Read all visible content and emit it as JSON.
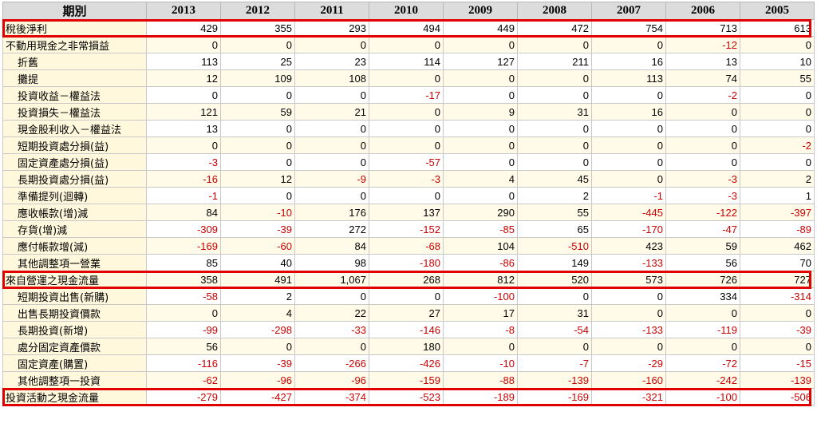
{
  "header": {
    "period_label": "期別",
    "years": [
      "2013",
      "2012",
      "2011",
      "2010",
      "2009",
      "2008",
      "2007",
      "2006",
      "2005"
    ]
  },
  "rows": [
    {
      "label": "稅後淨利",
      "indent": false,
      "highlight": true,
      "values": [
        "429",
        "355",
        "293",
        "494",
        "449",
        "472",
        "754",
        "713",
        "613"
      ]
    },
    {
      "label": "不動用現金之非常損益",
      "indent": false,
      "highlight": false,
      "values": [
        "0",
        "0",
        "0",
        "0",
        "0",
        "0",
        "0",
        "-12",
        "0"
      ]
    },
    {
      "label": "折舊",
      "indent": true,
      "highlight": false,
      "values": [
        "113",
        "25",
        "23",
        "114",
        "127",
        "211",
        "16",
        "13",
        "10"
      ]
    },
    {
      "label": "攤提",
      "indent": true,
      "highlight": false,
      "values": [
        "12",
        "109",
        "108",
        "0",
        "0",
        "0",
        "113",
        "74",
        "55"
      ]
    },
    {
      "label": "投資收益－權益法",
      "indent": true,
      "highlight": false,
      "values": [
        "0",
        "0",
        "0",
        "-17",
        "0",
        "0",
        "0",
        "-2",
        "0"
      ]
    },
    {
      "label": "投資損失－權益法",
      "indent": true,
      "highlight": false,
      "values": [
        "121",
        "59",
        "21",
        "0",
        "9",
        "31",
        "16",
        "0",
        "0"
      ]
    },
    {
      "label": "現金股利收入－權益法",
      "indent": true,
      "highlight": false,
      "values": [
        "13",
        "0",
        "0",
        "0",
        "0",
        "0",
        "0",
        "0",
        "0"
      ]
    },
    {
      "label": "短期投資處分損(益)",
      "indent": true,
      "highlight": false,
      "values": [
        "0",
        "0",
        "0",
        "0",
        "0",
        "0",
        "0",
        "0",
        "-2"
      ]
    },
    {
      "label": "固定資產處分損(益)",
      "indent": true,
      "highlight": false,
      "values": [
        "-3",
        "0",
        "0",
        "-57",
        "0",
        "0",
        "0",
        "0",
        "0"
      ]
    },
    {
      "label": "長期投資處分損(益)",
      "indent": true,
      "highlight": false,
      "values": [
        "-16",
        "12",
        "-9",
        "-3",
        "4",
        "45",
        "0",
        "-3",
        "2"
      ]
    },
    {
      "label": "準備提列(迴轉)",
      "indent": true,
      "highlight": false,
      "values": [
        "-1",
        "0",
        "0",
        "0",
        "0",
        "2",
        "-1",
        "-3",
        "1"
      ]
    },
    {
      "label": "應收帳款(增)減",
      "indent": true,
      "highlight": false,
      "values": [
        "84",
        "-10",
        "176",
        "137",
        "290",
        "55",
        "-445",
        "-122",
        "-397"
      ]
    },
    {
      "label": "存貨(增)減",
      "indent": true,
      "highlight": false,
      "values": [
        "-309",
        "-39",
        "272",
        "-152",
        "-85",
        "65",
        "-170",
        "-47",
        "-89"
      ]
    },
    {
      "label": "應付帳款增(減)",
      "indent": true,
      "highlight": false,
      "values": [
        "-169",
        "-60",
        "84",
        "-68",
        "104",
        "-510",
        "423",
        "59",
        "462"
      ]
    },
    {
      "label": "其他調整項一營業",
      "indent": true,
      "highlight": false,
      "values": [
        "85",
        "40",
        "98",
        "-180",
        "-86",
        "149",
        "-133",
        "56",
        "70"
      ]
    },
    {
      "label": "來自營運之現金流量",
      "indent": false,
      "highlight": true,
      "values": [
        "358",
        "491",
        "1,067",
        "268",
        "812",
        "520",
        "573",
        "726",
        "727"
      ]
    },
    {
      "label": "短期投資出售(新購)",
      "indent": true,
      "highlight": false,
      "values": [
        "-58",
        "2",
        "0",
        "0",
        "-100",
        "0",
        "0",
        "334",
        "-314"
      ]
    },
    {
      "label": "出售長期投資價款",
      "indent": true,
      "highlight": false,
      "values": [
        "0",
        "4",
        "22",
        "27",
        "17",
        "31",
        "0",
        "0",
        "0"
      ]
    },
    {
      "label": "長期投資(新增)",
      "indent": true,
      "highlight": false,
      "values": [
        "-99",
        "-298",
        "-33",
        "-146",
        "-8",
        "-54",
        "-133",
        "-119",
        "-39"
      ]
    },
    {
      "label": "處分固定資產價款",
      "indent": true,
      "highlight": false,
      "values": [
        "56",
        "0",
        "0",
        "180",
        "0",
        "0",
        "0",
        "0",
        "0"
      ]
    },
    {
      "label": "固定資產(購置)",
      "indent": true,
      "highlight": false,
      "values": [
        "-116",
        "-39",
        "-266",
        "-426",
        "-10",
        "-7",
        "-29",
        "-72",
        "-15"
      ]
    },
    {
      "label": "其他調整項一投資",
      "indent": true,
      "highlight": false,
      "values": [
        "-62",
        "-96",
        "-96",
        "-159",
        "-88",
        "-139",
        "-160",
        "-242",
        "-139"
      ]
    },
    {
      "label": "投資活動之現金流量",
      "indent": false,
      "highlight": true,
      "values": [
        "-279",
        "-427",
        "-374",
        "-523",
        "-189",
        "-169",
        "-321",
        "-100",
        "-506"
      ]
    }
  ],
  "colors": {
    "negative": "#cc0000",
    "highlight_border": "#e00000",
    "label_bg": "#fff8dc",
    "header_bg": "#dcdcdc"
  }
}
